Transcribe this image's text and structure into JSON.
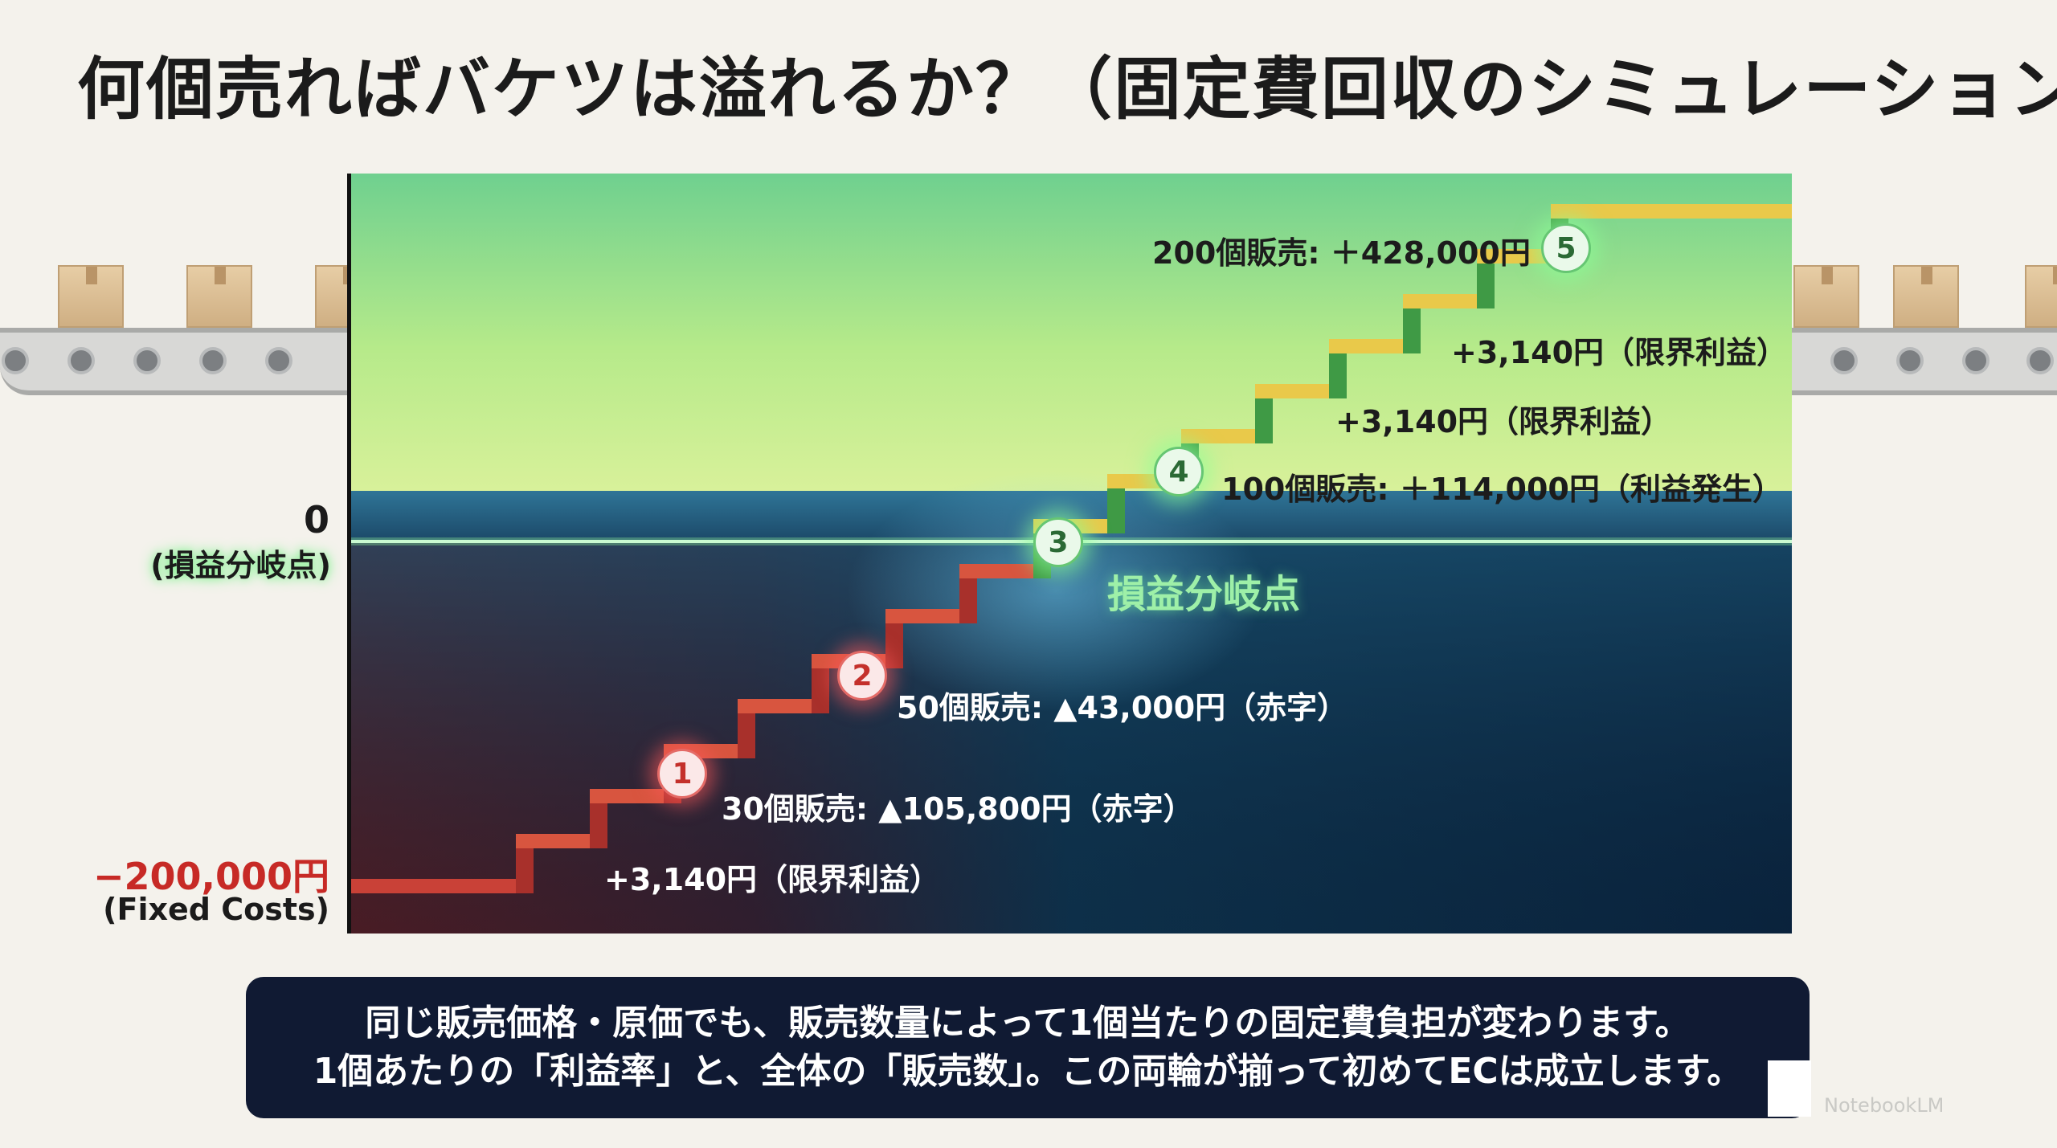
{
  "title": "何個売ればバケツは溢れるか？（固定費回収のシミュレーション）",
  "axis": {
    "zero_value": "0",
    "zero_label": "(損益分岐点)",
    "fixed_cost_value": "−200,000円",
    "fixed_cost_label": "(Fixed Costs)"
  },
  "breakeven_label": "損益分岐点",
  "markers": [
    {
      "num": "1",
      "label": "30個販売: ▲105,800円（赤字）",
      "status": "red"
    },
    {
      "num": "2",
      "label": "50個販売: ▲43,000円（赤字）",
      "status": "red"
    },
    {
      "num": "3",
      "label": "",
      "status": "green"
    },
    {
      "num": "4",
      "label": "100個販売: ＋114,000円（利益発生）",
      "status": "green"
    },
    {
      "num": "5",
      "label": "200個販売: ＋428,000円",
      "status": "green"
    }
  ],
  "step_labels": [
    "+3,140円（限界利益）",
    "+3,140円（限界利益）",
    "+3,140円（限界利益）"
  ],
  "note": {
    "line1": "同じ販売価格・原価でも、販売数量によって1個当たりの固定費負担が変わります。",
    "line2": "1個あたりの「利益率」と、全体の「販売数」。この両輪が揃って初めてECは成立します。"
  },
  "watermark": "NotebookLM",
  "colors": {
    "loss": "#c72a26",
    "profit_sky_top": "#6fd08f",
    "profit_sky_bottom": "#c8ef8e",
    "water_deep": "#0b2540",
    "step_yellow": "#e9c94a",
    "step_green": "#3f9a45",
    "step_red": "#c94137"
  }
}
